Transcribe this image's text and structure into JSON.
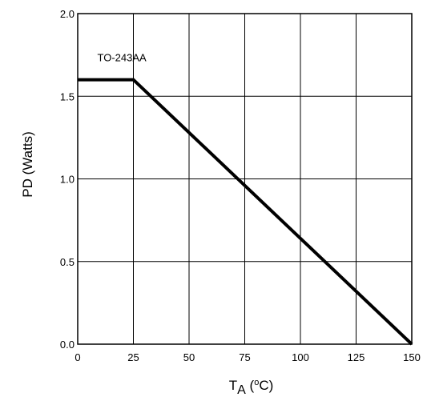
{
  "chart_data": {
    "type": "line",
    "x_ticks": [
      "0",
      "25",
      "50",
      "75",
      "100",
      "125",
      "150"
    ],
    "y_ticks": [
      "0.0",
      "0.5",
      "1.0",
      "1.5",
      "2.0"
    ],
    "xlim": [
      0,
      150
    ],
    "ylim": [
      0,
      2.0
    ],
    "grid": true,
    "xlabel": {
      "main": "T",
      "subscript": "A",
      "open": " (",
      "superscript": "o",
      "unit": "C)"
    },
    "ylabel": "PD (Watts)",
    "series": [
      {
        "name": "TO-243AA",
        "x": [
          0,
          25,
          150
        ],
        "y": [
          1.6,
          1.6,
          0.0
        ],
        "color": "#000000"
      }
    ],
    "annotation": {
      "text": "TO-243AA",
      "x": 25,
      "y": 1.6
    }
  }
}
